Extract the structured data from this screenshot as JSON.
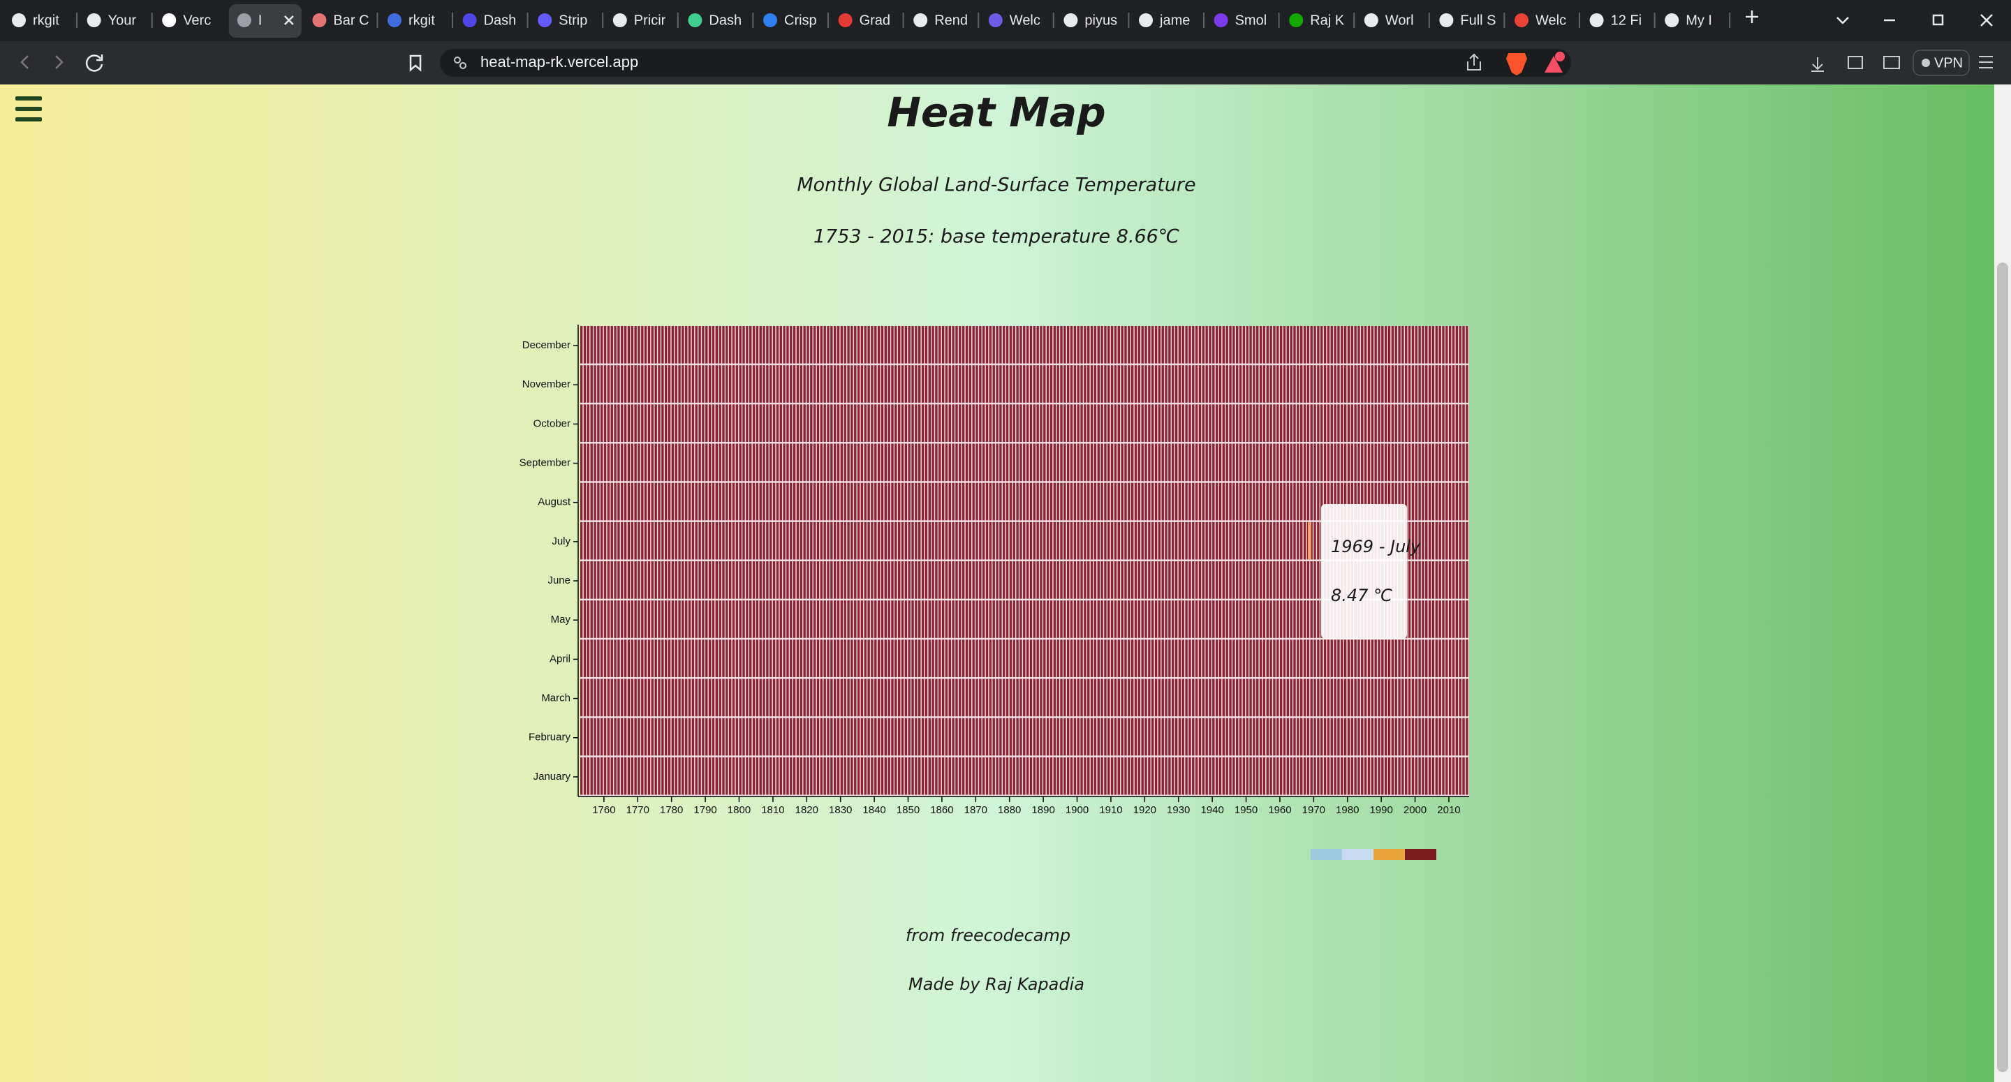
{
  "browser": {
    "tabs": [
      "rkgit",
      "Your",
      "Verc",
      "I",
      "Bar C",
      "rkgit",
      "Dash",
      "Strip",
      "Pricir",
      "Dash",
      "Crisp",
      "Grad",
      "Rend",
      "Welc",
      "piyus",
      "jame",
      "Smol",
      "Raj K",
      "Worl",
      "Full S",
      "Welc",
      "12 Fi",
      "My I"
    ],
    "active_tab": 3,
    "url": "heat-map-rk.vercel.app",
    "vpn": "VPN"
  },
  "page": {
    "title": "Heat Map",
    "subtitle": "Monthly Global Land-Surface Temperature",
    "description": "1753 - 2015: base temperature 8.66℃",
    "footer": [
      "from freecodecamp",
      "Made by Raj Kapadia"
    ]
  },
  "chart_data": {
    "type": "heatmap",
    "categories": [
      "January",
      "February",
      "March",
      "April",
      "May",
      "June",
      "July",
      "August",
      "September",
      "October",
      "November",
      "December"
    ],
    "xlim": [
      1753,
      2016
    ],
    "xticks": [
      1760,
      1770,
      1780,
      1790,
      1800,
      1810,
      1820,
      1830,
      1840,
      1850,
      1860,
      1870,
      1880,
      1890,
      1900,
      1910,
      1920,
      1930,
      1940,
      1950,
      1960,
      1970,
      1980,
      1990,
      2000,
      2010
    ],
    "color": "#8b2332",
    "legend_colors": [
      "#9ecae1",
      "#c6dbef",
      "#e8a33d",
      "#7a1c1c"
    ],
    "tooltip": [
      "1969 - July",
      "8.47 ℃"
    ]
  }
}
